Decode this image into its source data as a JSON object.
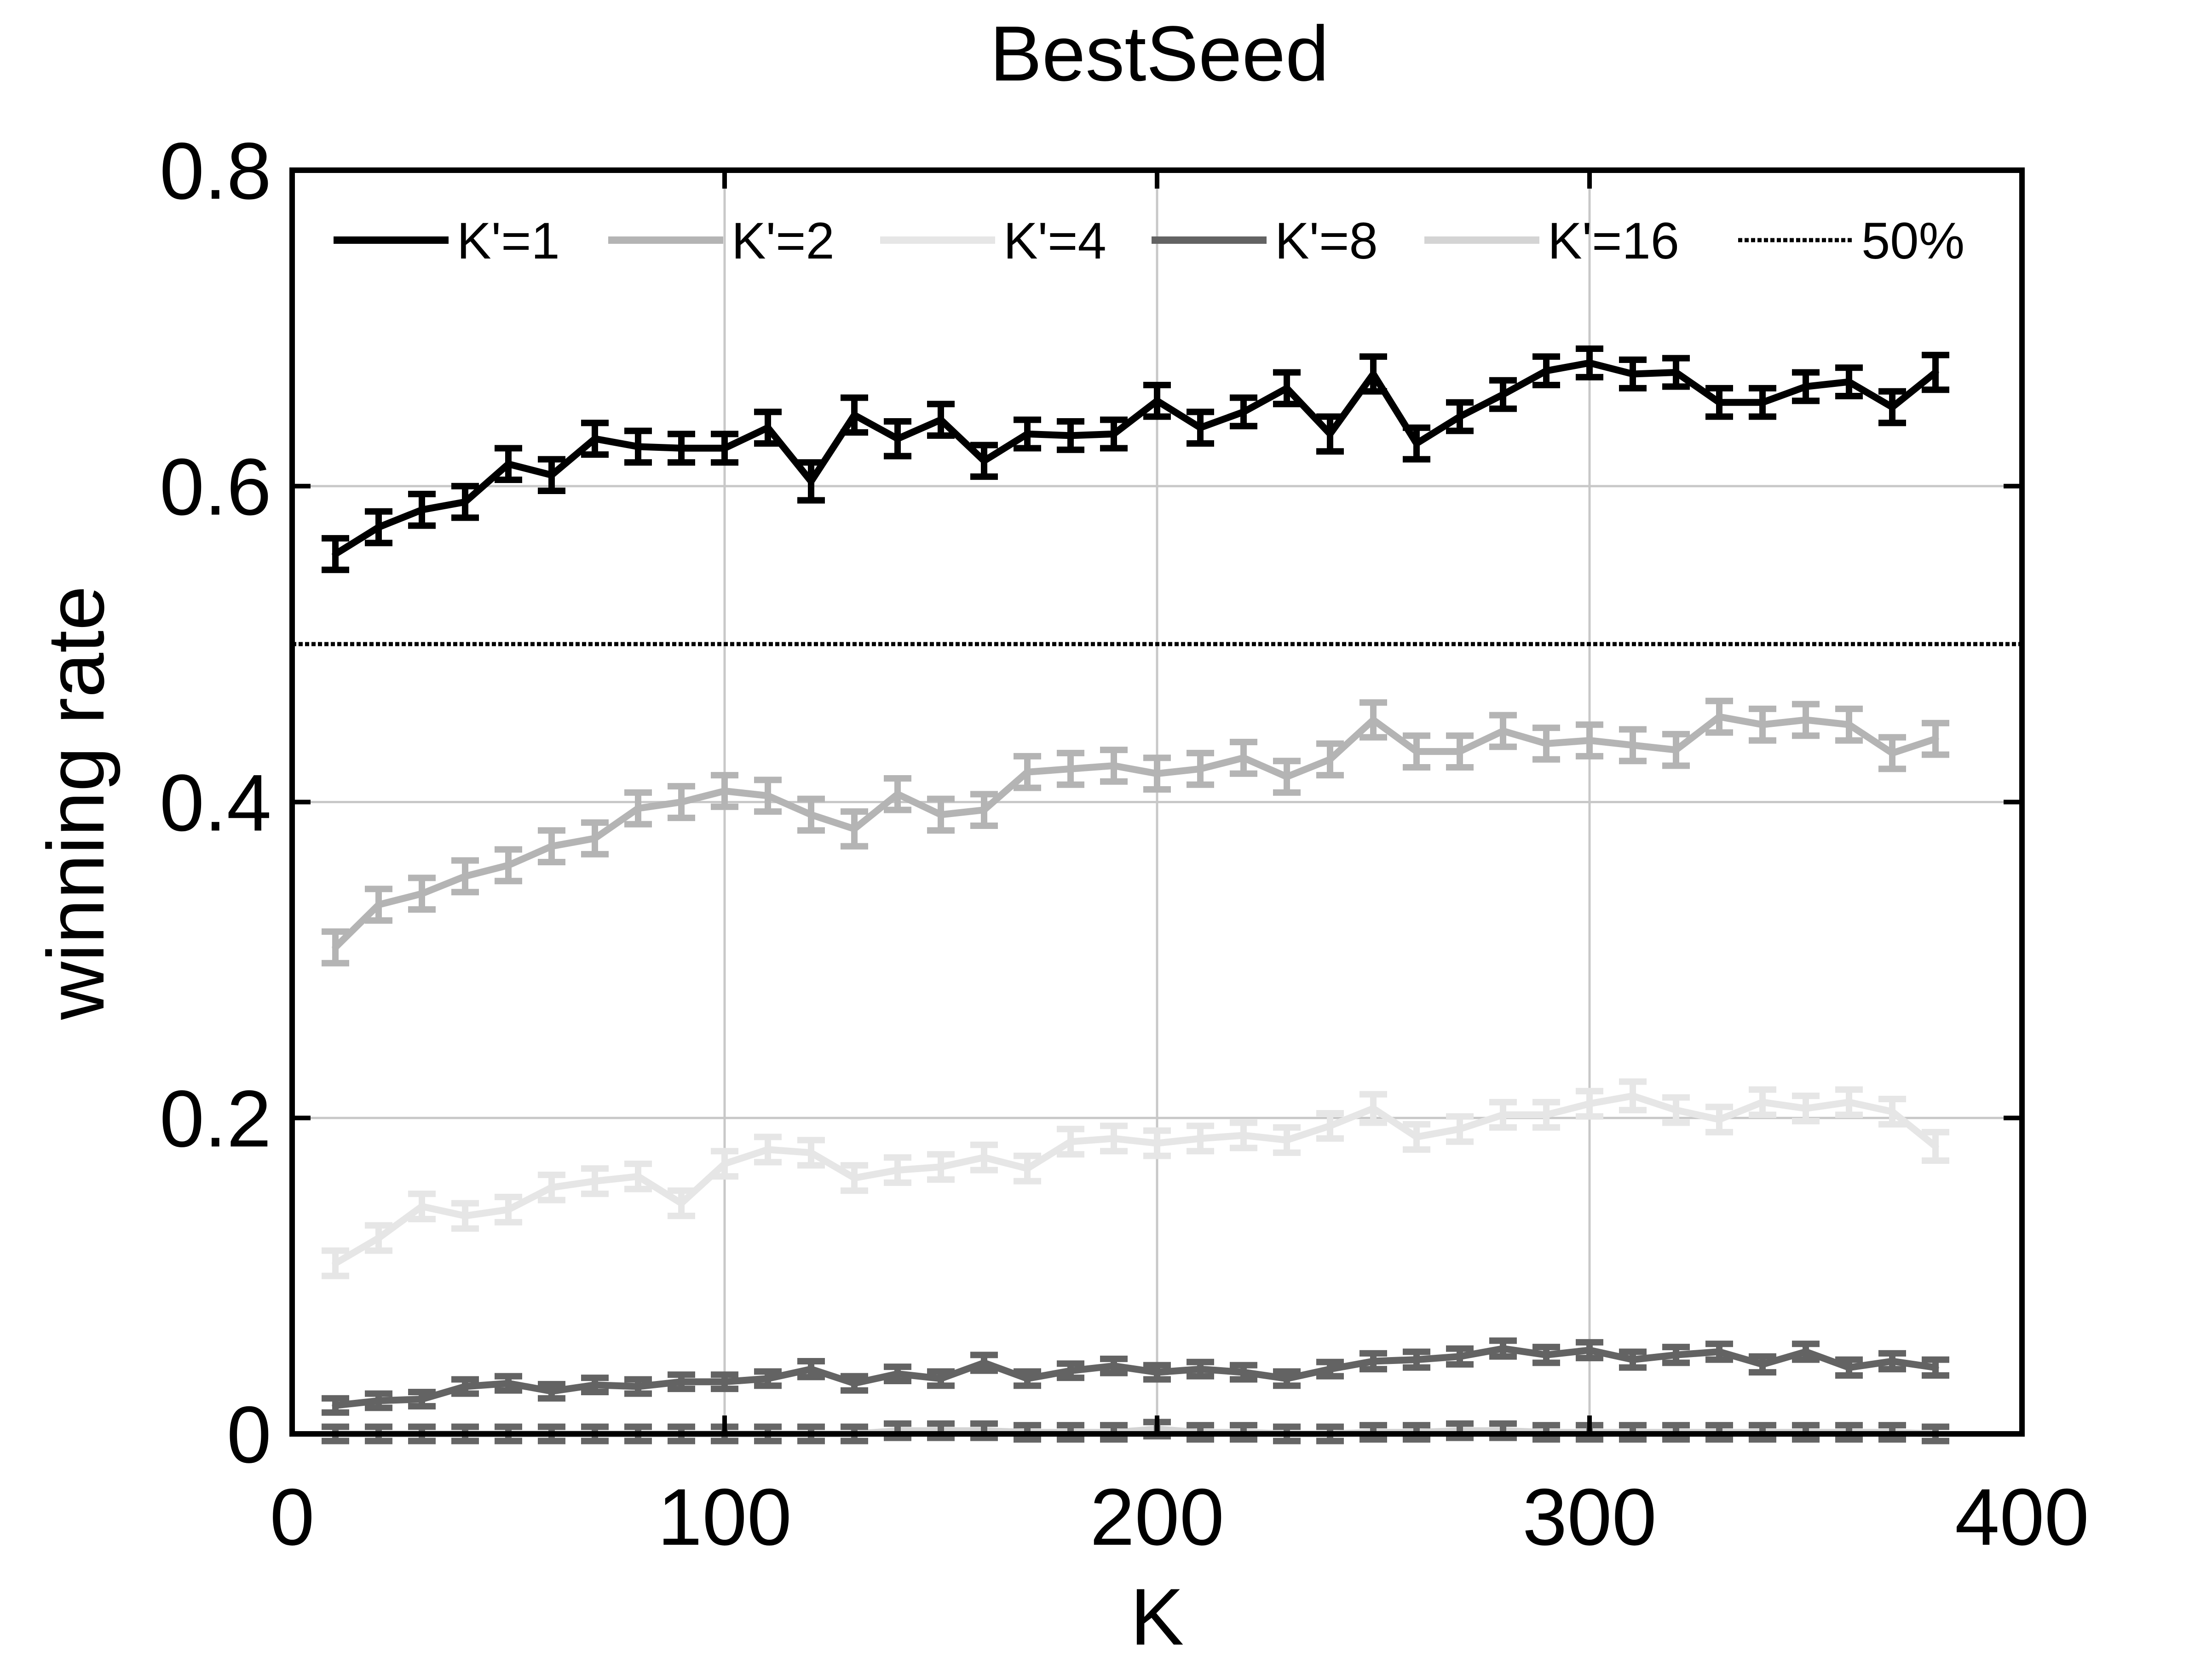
{
  "chart_data": {
    "type": "line",
    "title": "BestSeed",
    "xlabel": "K",
    "ylabel": "winning rate",
    "xlim": [
      0,
      400
    ],
    "ylim": [
      0,
      0.8
    ],
    "xticks": [
      "0",
      "100",
      "200",
      "300",
      "400"
    ],
    "yticks": [
      "0",
      "0.2",
      "0.4",
      "0.6",
      "0.8"
    ],
    "grid": true,
    "legend_position": "top",
    "x": [
      10,
      20,
      30,
      40,
      50,
      60,
      70,
      80,
      90,
      100,
      110,
      120,
      130,
      140,
      150,
      160,
      170,
      180,
      190,
      200,
      210,
      220,
      230,
      240,
      250,
      260,
      270,
      280,
      290,
      300,
      310,
      320,
      330,
      340,
      350,
      360,
      370,
      380
    ],
    "series": [
      {
        "name": "K'=1",
        "color": "#000000",
        "values": [
          0.557,
          0.574,
          0.585,
          0.59,
          0.614,
          0.607,
          0.63,
          0.625,
          0.624,
          0.624,
          0.637,
          0.603,
          0.645,
          0.63,
          0.642,
          0.616,
          0.633,
          0.632,
          0.633,
          0.654,
          0.637,
          0.647,
          0.662,
          0.633,
          0.671,
          0.627,
          0.644,
          0.658,
          0.673,
          0.678,
          0.671,
          0.672,
          0.653,
          0.653,
          0.663,
          0.666,
          0.65,
          0.672
        ],
        "error": [
          0.01,
          0.01,
          0.01,
          0.01,
          0.01,
          0.01,
          0.01,
          0.01,
          0.009,
          0.009,
          0.01,
          0.012,
          0.011,
          0.011,
          0.01,
          0.01,
          0.009,
          0.009,
          0.009,
          0.01,
          0.01,
          0.009,
          0.01,
          0.011,
          0.011,
          0.01,
          0.009,
          0.009,
          0.009,
          0.009,
          0.009,
          0.009,
          0.009,
          0.009,
          0.009,
          0.009,
          0.01,
          0.011
        ]
      },
      {
        "name": "K'=2",
        "color": "#b4b4b4",
        "values": [
          0.308,
          0.335,
          0.342,
          0.353,
          0.36,
          0.372,
          0.377,
          0.396,
          0.4,
          0.407,
          0.404,
          0.392,
          0.383,
          0.405,
          0.392,
          0.395,
          0.419,
          0.421,
          0.423,
          0.418,
          0.421,
          0.428,
          0.416,
          0.427,
          0.452,
          0.432,
          0.432,
          0.445,
          0.437,
          0.439,
          0.436,
          0.433,
          0.454,
          0.449,
          0.452,
          0.449,
          0.431,
          0.44
        ],
        "error": [
          0.01,
          0.01,
          0.01,
          0.01,
          0.01,
          0.01,
          0.01,
          0.01,
          0.01,
          0.01,
          0.01,
          0.01,
          0.011,
          0.01,
          0.01,
          0.01,
          0.01,
          0.01,
          0.01,
          0.01,
          0.01,
          0.01,
          0.01,
          0.01,
          0.011,
          0.01,
          0.01,
          0.01,
          0.01,
          0.01,
          0.01,
          0.01,
          0.01,
          0.01,
          0.01,
          0.01,
          0.01,
          0.01
        ]
      },
      {
        "name": "K'=4",
        "color": "#e6e6e6",
        "values": [
          0.108,
          0.124,
          0.144,
          0.138,
          0.142,
          0.156,
          0.16,
          0.163,
          0.146,
          0.171,
          0.18,
          0.178,
          0.162,
          0.167,
          0.169,
          0.175,
          0.168,
          0.185,
          0.187,
          0.184,
          0.187,
          0.189,
          0.186,
          0.195,
          0.206,
          0.188,
          0.193,
          0.202,
          0.202,
          0.209,
          0.214,
          0.205,
          0.199,
          0.21,
          0.206,
          0.21,
          0.204,
          0.182
        ],
        "error": [
          0.008,
          0.008,
          0.008,
          0.008,
          0.008,
          0.008,
          0.008,
          0.008,
          0.008,
          0.008,
          0.008,
          0.008,
          0.008,
          0.008,
          0.008,
          0.008,
          0.008,
          0.008,
          0.008,
          0.008,
          0.008,
          0.008,
          0.008,
          0.008,
          0.009,
          0.008,
          0.008,
          0.008,
          0.008,
          0.008,
          0.009,
          0.008,
          0.008,
          0.008,
          0.008,
          0.008,
          0.008,
          0.009
        ]
      },
      {
        "name": "K'=8",
        "color": "#636363",
        "values": [
          0.018,
          0.021,
          0.022,
          0.03,
          0.032,
          0.027,
          0.031,
          0.03,
          0.033,
          0.033,
          0.035,
          0.041,
          0.032,
          0.038,
          0.035,
          0.045,
          0.035,
          0.04,
          0.043,
          0.039,
          0.041,
          0.039,
          0.035,
          0.041,
          0.046,
          0.047,
          0.049,
          0.054,
          0.05,
          0.053,
          0.047,
          0.05,
          0.052,
          0.044,
          0.052,
          0.042,
          0.046,
          0.042
        ],
        "error": [
          0.004,
          0.004,
          0.004,
          0.004,
          0.004,
          0.004,
          0.004,
          0.004,
          0.004,
          0.004,
          0.004,
          0.005,
          0.004,
          0.004,
          0.004,
          0.005,
          0.004,
          0.004,
          0.004,
          0.004,
          0.004,
          0.004,
          0.004,
          0.004,
          0.005,
          0.005,
          0.005,
          0.005,
          0.005,
          0.005,
          0.005,
          0.005,
          0.005,
          0.005,
          0.005,
          0.005,
          0.005,
          0.005
        ]
      },
      {
        "name": "K'=16",
        "color": "#d4d4d4",
        "marker_color": "#666666",
        "values": [
          0.0,
          0.0,
          0.0,
          0.0,
          0.0,
          0.0,
          0.0,
          0.0,
          0.0,
          0.0,
          0.0,
          0.0,
          0.0,
          0.002,
          0.002,
          0.002,
          0.001,
          0.001,
          0.001,
          0.003,
          0.001,
          0.001,
          0.0,
          0.0,
          0.001,
          0.001,
          0.002,
          0.002,
          0.001,
          0.001,
          0.001,
          0.001,
          0.001,
          0.001,
          0.001,
          0.001,
          0.001,
          0.0
        ],
        "error": [
          0.001,
          0.001,
          0.001,
          0.001,
          0.001,
          0.001,
          0.001,
          0.001,
          0.001,
          0.001,
          0.001,
          0.001,
          0.001,
          0.001,
          0.001,
          0.001,
          0.001,
          0.001,
          0.001,
          0.002,
          0.001,
          0.001,
          0.001,
          0.001,
          0.001,
          0.001,
          0.001,
          0.001,
          0.001,
          0.001,
          0.001,
          0.001,
          0.001,
          0.001,
          0.001,
          0.001,
          0.001,
          0.001
        ]
      }
    ],
    "reference_line": {
      "name": "50%",
      "y": 0.5,
      "style": "dotted",
      "color": "#000000"
    }
  }
}
